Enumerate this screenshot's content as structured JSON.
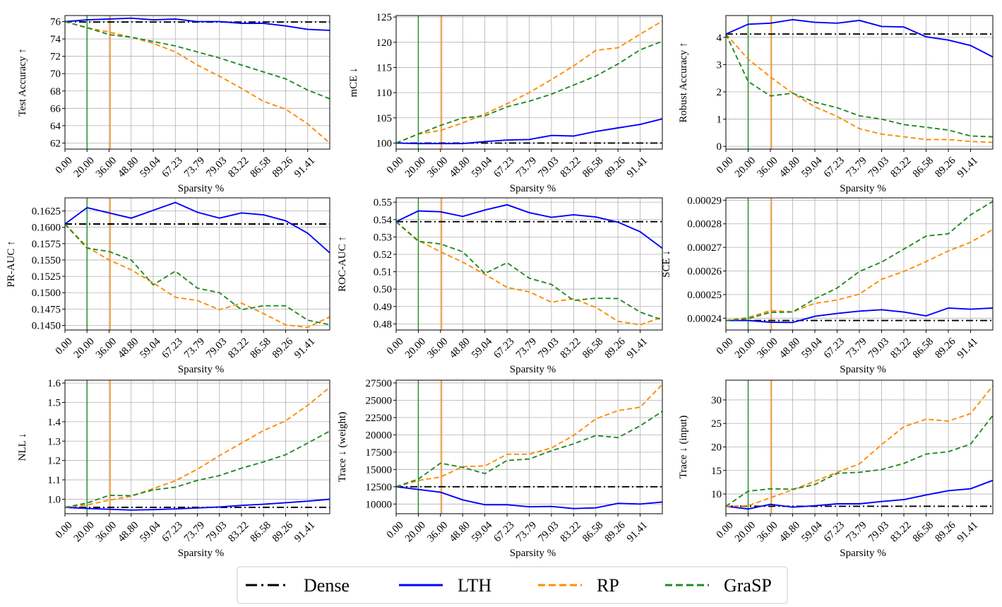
{
  "legend": {
    "entries": [
      {
        "name": "Dense",
        "color": "#000000",
        "dash": "dashdot"
      },
      {
        "name": "LTH",
        "color": "#0000ff",
        "dash": "solid"
      },
      {
        "name": "RP",
        "color": "#ff8c00",
        "dash": "dashed"
      },
      {
        "name": "GraSP",
        "color": "#228b22",
        "dash": "dashed"
      }
    ]
  },
  "chart_data": [
    {
      "type": "line",
      "xlabel": "Sparsity %",
      "ylabel": "Test Accuracy ↑",
      "x_ticks": [
        "0.00",
        "20.00",
        "36.00",
        "48.80",
        "59.04",
        "67.23",
        "73.79",
        "79.03",
        "83.22",
        "86.58",
        "89.26",
        "91.41"
      ],
      "yticks": [
        62,
        64,
        66,
        68,
        70,
        72,
        74,
        76
      ],
      "ylim": [
        61.3,
        76.7
      ],
      "vlines": {
        "GraSP": 1,
        "RP": 2.05
      },
      "grid": true,
      "series": [
        {
          "name": "Dense",
          "values": [
            76,
            75.95,
            75.95,
            75.95,
            75.95,
            75.95,
            75.95,
            75.95,
            75.95,
            75.95,
            75.95,
            75.95,
            75.95
          ]
        },
        {
          "name": "LTH",
          "values": [
            76,
            76.2,
            76.3,
            76.4,
            76.2,
            76.3,
            76.0,
            76.0,
            75.8,
            75.8,
            75.5,
            75.1,
            75.0
          ]
        },
        {
          "name": "RP",
          "values": [
            76,
            75.3,
            74.8,
            74.2,
            73.5,
            72.5,
            71.0,
            69.7,
            68.3,
            66.8,
            65.9,
            64.2,
            62.0
          ]
        },
        {
          "name": "GraSP",
          "values": [
            76,
            75.3,
            74.5,
            74.2,
            73.7,
            73.2,
            72.5,
            71.8,
            71.0,
            70.2,
            69.4,
            68.1,
            67.1
          ]
        }
      ]
    },
    {
      "type": "line",
      "xlabel": "Sparsity %",
      "ylabel": "mCE ↓",
      "x_ticks": [
        "0.00",
        "20.00",
        "36.00",
        "48.80",
        "59.04",
        "67.23",
        "73.79",
        "79.03",
        "83.22",
        "86.58",
        "89.26",
        "91.41"
      ],
      "yticks": [
        100,
        105,
        110,
        115,
        120,
        125
      ],
      "ylim": [
        98.8,
        125.3
      ],
      "vlines": {
        "GraSP": 1,
        "RP": 2.05
      },
      "grid": true,
      "series": [
        {
          "name": "Dense",
          "values": [
            100,
            100,
            100,
            100,
            100,
            100,
            100,
            100,
            100,
            100,
            100,
            100,
            100
          ]
        },
        {
          "name": "LTH",
          "values": [
            100,
            99.9,
            99.9,
            99.9,
            100.3,
            100.6,
            100.7,
            101.5,
            101.4,
            102.3,
            103.0,
            103.7,
            104.8
          ]
        },
        {
          "name": "RP",
          "values": [
            100,
            101.8,
            102.5,
            104.0,
            105.8,
            107.8,
            110.0,
            112.6,
            115.3,
            118.4,
            118.9,
            121.6,
            124.2
          ]
        },
        {
          "name": "GraSP",
          "values": [
            100,
            101.8,
            103.5,
            105.0,
            105.4,
            107.2,
            108.3,
            109.7,
            111.5,
            113.3,
            115.7,
            118.5,
            120.2
          ]
        }
      ]
    },
    {
      "type": "line",
      "xlabel": "Sparsity %",
      "ylabel": "Robust Accuracy ↑",
      "x_ticks": [
        "0.00",
        "20.00",
        "36.00",
        "48.80",
        "59.04",
        "67.23",
        "73.79",
        "79.03",
        "83.22",
        "86.58",
        "89.26",
        "91.41"
      ],
      "yticks": [
        0,
        1,
        2,
        3,
        4
      ],
      "ylim": [
        -0.1,
        4.8
      ],
      "vlines": {
        "GraSP": 1,
        "RP": 2.05
      },
      "grid": true,
      "series": [
        {
          "name": "Dense",
          "values": [
            4.12,
            4.12,
            4.12,
            4.12,
            4.12,
            4.12,
            4.12,
            4.12,
            4.12,
            4.12,
            4.12,
            4.12,
            4.12
          ]
        },
        {
          "name": "LTH",
          "values": [
            4.12,
            4.48,
            4.52,
            4.65,
            4.55,
            4.52,
            4.62,
            4.4,
            4.38,
            4.02,
            3.9,
            3.7,
            3.28
          ]
        },
        {
          "name": "RP",
          "values": [
            4.12,
            3.2,
            2.55,
            1.95,
            1.45,
            1.1,
            0.65,
            0.45,
            0.35,
            0.25,
            0.25,
            0.18,
            0.15
          ]
        },
        {
          "name": "GraSP",
          "values": [
            4.12,
            2.38,
            1.85,
            1.95,
            1.62,
            1.42,
            1.12,
            1.0,
            0.8,
            0.7,
            0.6,
            0.38,
            0.35
          ]
        }
      ]
    },
    {
      "type": "line",
      "xlabel": "Sparsity %",
      "ylabel": "PR-AUC ↑",
      "x_ticks": [
        "0.00",
        "20.00",
        "36.00",
        "48.80",
        "59.04",
        "67.23",
        "73.79",
        "79.03",
        "83.22",
        "86.58",
        "89.26",
        "91.41"
      ],
      "yticks_labels": [
        "0.1450",
        "0.1475",
        "0.1500",
        "0.1525",
        "0.1550",
        "0.1575",
        "0.1600",
        "0.1625"
      ],
      "yticks": [
        0.145,
        0.1475,
        0.15,
        0.1525,
        0.155,
        0.1575,
        0.16,
        0.1625
      ],
      "ylim": [
        0.1443,
        0.1645
      ],
      "vlines": {
        "GraSP": 1,
        "RP": 2.05
      },
      "grid": true,
      "series": [
        {
          "name": "Dense",
          "values": [
            0.1605,
            0.1605,
            0.1605,
            0.1605,
            0.1605,
            0.1605,
            0.1605,
            0.1605,
            0.1605,
            0.1605,
            0.1605,
            0.1605,
            0.1605
          ]
        },
        {
          "name": "LTH",
          "values": [
            0.1605,
            0.163,
            0.1622,
            0.1614,
            0.1626,
            0.1638,
            0.1623,
            0.1614,
            0.1622,
            0.1619,
            0.161,
            0.1591,
            0.1561
          ]
        },
        {
          "name": "RP",
          "values": [
            0.1605,
            0.157,
            0.155,
            0.1535,
            0.1515,
            0.1493,
            0.1488,
            0.1474,
            0.1484,
            0.1468,
            0.1451,
            0.1447,
            0.1463
          ]
        },
        {
          "name": "GraSP",
          "values": [
            0.1605,
            0.1568,
            0.1563,
            0.155,
            0.1512,
            0.1533,
            0.1507,
            0.15,
            0.1474,
            0.148,
            0.148,
            0.1458,
            0.1451
          ]
        }
      ]
    },
    {
      "type": "line",
      "xlabel": "Sparsity %",
      "ylabel": "ROC-AUC ↑",
      "x_ticks": [
        "0.00",
        "20.00",
        "36.00",
        "48.80",
        "59.04",
        "67.23",
        "73.79",
        "79.03",
        "83.22",
        "86.58",
        "89.26",
        "91.41"
      ],
      "yticks": [
        0.48,
        0.49,
        0.5,
        0.51,
        0.52,
        0.53,
        0.54,
        0.55
      ],
      "yticks_labels": [
        "0.48",
        "0.49",
        "0.50",
        "0.51",
        "0.52",
        "0.53",
        "0.54",
        "0.55"
      ],
      "ylim": [
        0.4765,
        0.5525
      ],
      "vlines": {
        "GraSP": 1,
        "RP": 2.05
      },
      "grid": true,
      "series": [
        {
          "name": "Dense",
          "values": [
            0.5388,
            0.5388,
            0.5388,
            0.5388,
            0.5388,
            0.5388,
            0.5388,
            0.5388,
            0.5388,
            0.5388,
            0.5388,
            0.5388,
            0.5388
          ]
        },
        {
          "name": "LTH",
          "values": [
            0.5388,
            0.545,
            0.5445,
            0.5418,
            0.5455,
            0.5485,
            0.544,
            0.5413,
            0.5428,
            0.5415,
            0.5385,
            0.533,
            0.5235
          ]
        },
        {
          "name": "RP",
          "values": [
            0.5388,
            0.528,
            0.5215,
            0.5155,
            0.5085,
            0.501,
            0.4985,
            0.4925,
            0.4945,
            0.4895,
            0.4815,
            0.4795,
            0.4838
          ]
        },
        {
          "name": "GraSP",
          "values": [
            0.5388,
            0.5275,
            0.526,
            0.5215,
            0.509,
            0.5152,
            0.5063,
            0.5027,
            0.4935,
            0.4948,
            0.4946,
            0.4868,
            0.4823
          ]
        }
      ]
    },
    {
      "type": "line",
      "xlabel": "Sparsity %",
      "ylabel": "SCE ↓",
      "x_ticks": [
        "0.00",
        "20.00",
        "36.00",
        "48.80",
        "59.04",
        "67.23",
        "73.79",
        "79.03",
        "83.22",
        "86.58",
        "89.26",
        "91.41"
      ],
      "yticks": [
        0.00024,
        0.00025,
        0.00026,
        0.00027,
        0.00028,
        0.00029
      ],
      "yticks_labels": [
        "0.00024",
        "0.00025",
        "0.00026",
        "0.00027",
        "0.00028",
        "0.00029"
      ],
      "ylim": [
        0.000235,
        0.000291
      ],
      "vlines": {
        "GraSP": 1,
        "RP": 2.05
      },
      "grid": true,
      "series": [
        {
          "name": "Dense",
          "values": [
            0.000239,
            0.000239,
            0.000239,
            0.000239,
            0.000239,
            0.000239,
            0.000239,
            0.000239,
            0.000239,
            0.000239,
            0.000239,
            0.000239,
            0.000239
          ]
        },
        {
          "name": "LTH",
          "values": [
            0.000239,
            0.000239,
            0.0002383,
            0.0002382,
            0.0002408,
            0.000242,
            0.000243,
            0.0002436,
            0.0002426,
            0.000241,
            0.0002443,
            0.0002438,
            0.0002443
          ]
        },
        {
          "name": "RP",
          "values": [
            0.000239,
            0.0002403,
            0.0002432,
            0.0002427,
            0.0002463,
            0.0002477,
            0.0002502,
            0.0002565,
            0.0002598,
            0.000264,
            0.0002685,
            0.0002722,
            0.0002776
          ]
        },
        {
          "name": "GraSP",
          "values": [
            0.000239,
            0.0002398,
            0.0002425,
            0.0002426,
            0.0002482,
            0.0002528,
            0.0002598,
            0.0002638,
            0.0002693,
            0.0002748,
            0.0002758,
            0.0002838,
            0.0002895
          ]
        }
      ]
    },
    {
      "type": "line",
      "xlabel": "Sparsity %",
      "ylabel": "NLL ↓",
      "x_ticks": [
        "0.00",
        "20.00",
        "36.00",
        "48.80",
        "59.04",
        "67.23",
        "73.79",
        "79.03",
        "83.22",
        "86.58",
        "89.26",
        "91.41"
      ],
      "yticks": [
        1.0,
        1.1,
        1.2,
        1.3,
        1.4,
        1.5,
        1.6
      ],
      "yticks_labels": [
        "1.0",
        "1.1",
        "1.2",
        "1.3",
        "1.4",
        "1.5",
        "1.6"
      ],
      "ylim": [
        0.925,
        1.615
      ],
      "vlines": {
        "GraSP": 1,
        "RP": 2.05
      },
      "grid": true,
      "series": [
        {
          "name": "Dense",
          "values": [
            0.958,
            0.958,
            0.958,
            0.958,
            0.958,
            0.958,
            0.958,
            0.958,
            0.958,
            0.958,
            0.958,
            0.958,
            0.958
          ]
        },
        {
          "name": "LTH",
          "values": [
            0.958,
            0.952,
            0.948,
            0.944,
            0.946,
            0.95,
            0.955,
            0.96,
            0.968,
            0.974,
            0.982,
            0.99,
            1.0
          ]
        },
        {
          "name": "RP",
          "values": [
            0.958,
            0.97,
            0.995,
            1.015,
            1.055,
            1.095,
            1.155,
            1.225,
            1.29,
            1.355,
            1.405,
            1.485,
            1.578
          ]
        },
        {
          "name": "GraSP",
          "values": [
            0.958,
            0.98,
            1.02,
            1.018,
            1.048,
            1.062,
            1.097,
            1.122,
            1.16,
            1.193,
            1.23,
            1.29,
            1.352
          ]
        }
      ]
    },
    {
      "type": "line",
      "xlabel": "Sparsity %",
      "ylabel": "Trace ↓ (weight)",
      "x_ticks": [
        "0.00",
        "20.00",
        "36.00",
        "48.80",
        "59.04",
        "67.23",
        "73.79",
        "79.03",
        "83.22",
        "86.58",
        "89.26",
        "91.41"
      ],
      "yticks": [
        10000,
        12500,
        15000,
        17500,
        20000,
        22500,
        25000,
        27500
      ],
      "yticks_labels": [
        "10000",
        "12500",
        "15000",
        "17500",
        "20000",
        "22500",
        "25000",
        "27500"
      ],
      "ylim": [
        8600,
        27900
      ],
      "vlines": {
        "GraSP": 1,
        "RP": 2.05
      },
      "grid": true,
      "series": [
        {
          "name": "Dense",
          "values": [
            12500,
            12500,
            12500,
            12500,
            12500,
            12500,
            12500,
            12500,
            12500,
            12500,
            12500,
            12500,
            12500
          ]
        },
        {
          "name": "LTH",
          "values": [
            12500,
            12100,
            11700,
            10600,
            9900,
            9900,
            9600,
            9650,
            9350,
            9450,
            10100,
            10000,
            10300
          ]
        },
        {
          "name": "RP",
          "values": [
            12500,
            13400,
            13900,
            15400,
            15500,
            17200,
            17200,
            18100,
            19900,
            22300,
            23500,
            24000,
            27300
          ]
        },
        {
          "name": "GraSP",
          "values": [
            12500,
            13600,
            15900,
            15300,
            14400,
            16300,
            16500,
            17700,
            18700,
            19900,
            19600,
            21300,
            23400
          ]
        }
      ]
    },
    {
      "type": "line",
      "xlabel": "Sparsity %",
      "ylabel": "Trace ↓ (input)",
      "x_ticks": [
        "0.00",
        "20.00",
        "36.00",
        "48.80",
        "59.04",
        "67.23",
        "73.79",
        "79.03",
        "83.22",
        "86.58",
        "89.26",
        "91.41"
      ],
      "yticks": [
        10,
        15,
        20,
        25,
        30
      ],
      "ylim": [
        5.8,
        34.2
      ],
      "vlines": {
        "GraSP": 1,
        "RP": 2.05
      },
      "grid": true,
      "series": [
        {
          "name": "Dense",
          "values": [
            7.4,
            7.4,
            7.4,
            7.4,
            7.4,
            7.4,
            7.4,
            7.4,
            7.4,
            7.4,
            7.4,
            7.4,
            7.4
          ]
        },
        {
          "name": "LTH",
          "values": [
            7.4,
            6.8,
            7.8,
            7.2,
            7.5,
            7.9,
            7.9,
            8.4,
            8.8,
            9.8,
            10.7,
            11.1,
            12.9
          ]
        },
        {
          "name": "RP",
          "values": [
            7.4,
            7.5,
            9.2,
            10.9,
            12.7,
            14.6,
            16.4,
            20.5,
            24.3,
            25.9,
            25.5,
            27.1,
            33.0
          ]
        },
        {
          "name": "GraSP",
          "values": [
            7.4,
            10.6,
            11.1,
            11.0,
            12.0,
            14.4,
            14.6,
            15.2,
            16.5,
            18.5,
            19.0,
            20.6,
            26.7
          ]
        }
      ]
    }
  ]
}
